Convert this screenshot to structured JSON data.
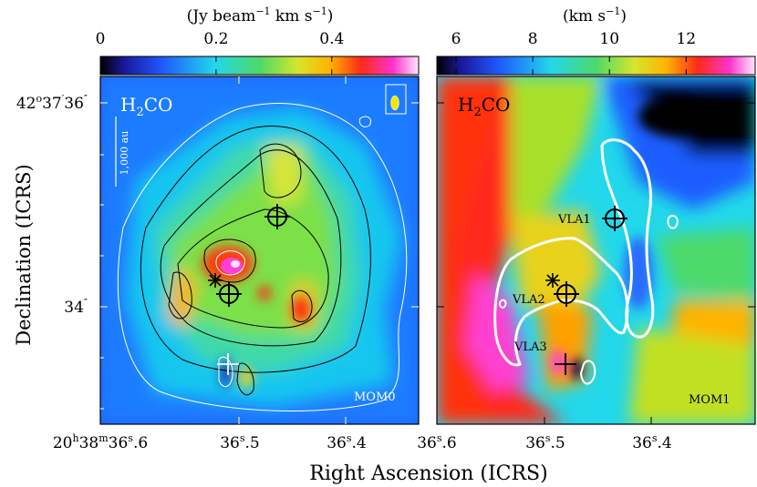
{
  "chart_data": [
    {
      "type": "heatmap",
      "map_label": "MOM0",
      "molecule": "H2CO",
      "colorbar": {
        "unit_text": "(Jy beam",
        "unit_exp": "−1",
        "unit_rest": " km s",
        "unit_exp2": "−1",
        "unit_close": ")",
        "ticks": [
          "0",
          "0.2",
          "0.4"
        ],
        "tick_values": [
          0,
          0.2,
          0.4
        ],
        "range": [
          0,
          0.55
        ]
      },
      "scalebar_label": "1,000 au",
      "ylabel": "Declination (ICRS)",
      "ytick_labels": [
        "42°37′36″",
        "34″"
      ],
      "xtick_labels": [
        "20h38m36s.6",
        "36s.5",
        "36s.4"
      ],
      "markers": [
        {
          "name": "VLA1",
          "symbol": "circle-plus"
        },
        {
          "name": "VLA2",
          "symbol": "circle-plus"
        },
        {
          "name": "VLA3",
          "symbol": "plus"
        },
        {
          "name": "",
          "symbol": "star"
        }
      ]
    },
    {
      "type": "heatmap",
      "map_label": "MOM1",
      "molecule": "H2CO",
      "colorbar": {
        "unit_text": "(km s",
        "unit_exp": "−1",
        "unit_close": ")",
        "ticks": [
          "6",
          "8",
          "10",
          "12"
        ],
        "tick_values": [
          6,
          8,
          10,
          12
        ],
        "range": [
          5.5,
          13.8
        ]
      },
      "markers": [
        {
          "name": "VLA1",
          "symbol": "circle-plus"
        },
        {
          "name": "VLA2",
          "symbol": "circle-plus"
        },
        {
          "name": "VLA3",
          "symbol": "plus"
        },
        {
          "name": "",
          "symbol": "star"
        }
      ],
      "source_labels": [
        "VLA1",
        "VLA2",
        "VLA3"
      ],
      "xtick_labels": [
        "36s.6",
        "36s.5",
        "36s.4"
      ]
    }
  ],
  "xlabel": "Right Ascension (ICRS)"
}
